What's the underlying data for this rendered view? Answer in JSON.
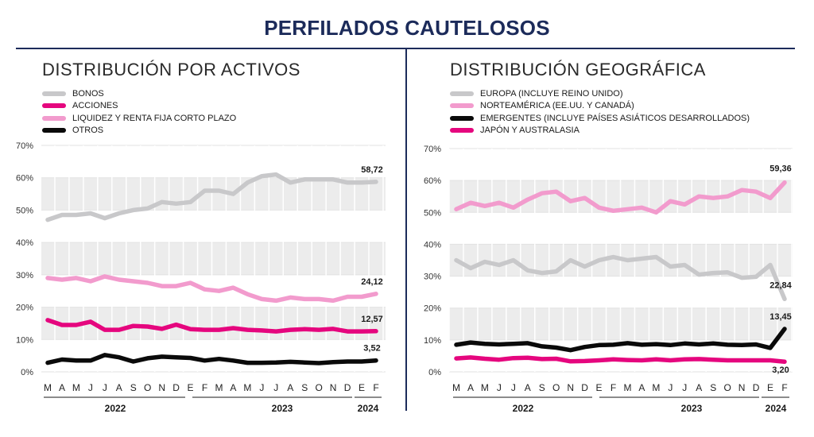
{
  "header": {
    "title": "PERFILADOS CAUTELOSOS"
  },
  "colors": {
    "navy": "#1c2b5a",
    "grey": "#c8c8ca",
    "magenta": "#e5067e",
    "pink": "#f29bcd",
    "black": "#0a0a0a",
    "band": "#ececec"
  },
  "chart_data": [
    {
      "type": "line",
      "title": "DISTRIBUCIÓN POR ACTIVOS",
      "x": [
        "M",
        "A",
        "M",
        "J",
        "J",
        "A",
        "S",
        "O",
        "N",
        "D",
        "E",
        "F",
        "M",
        "A",
        "M",
        "J",
        "J",
        "A",
        "S",
        "O",
        "N",
        "D",
        "E",
        "F"
      ],
      "year_labels": [
        "2022",
        "2023",
        "2024"
      ],
      "ylim": [
        0,
        70
      ],
      "yticks": [
        "0%",
        "10%",
        "20%",
        "30%",
        "40%",
        "50%",
        "60%",
        "70%"
      ],
      "grid": true,
      "legend_placement": "top-left",
      "series": [
        {
          "name": "BONOS",
          "color": "#c8c8ca",
          "values": [
            47,
            48.5,
            48.5,
            49,
            47.5,
            49,
            50,
            50.5,
            52.5,
            52,
            52.5,
            56,
            56,
            55,
            58.5,
            60.5,
            61,
            58.5,
            59.5,
            59.5,
            59.5,
            58.5,
            58.5,
            58.72
          ],
          "end_label": "58,72"
        },
        {
          "name": "ACCIONES",
          "color": "#e5067e",
          "values": [
            16,
            14.5,
            14.5,
            15.5,
            13,
            13,
            14.2,
            14,
            13.3,
            14.6,
            13.2,
            13,
            13,
            13.5,
            13,
            12.8,
            12.5,
            13,
            13.2,
            13,
            13.3,
            12.5,
            12.5,
            12.57
          ],
          "end_label": "12,57"
        },
        {
          "name": "LIQUIDEZ Y RENTA FIJA CORTO PLAZO",
          "color": "#f29bcd",
          "values": [
            29,
            28.5,
            29,
            28,
            29.5,
            28.5,
            28,
            27.5,
            26.5,
            26.5,
            27.5,
            25.5,
            25,
            26,
            24,
            22.5,
            22,
            23,
            22.5,
            22.5,
            22,
            23.2,
            23.2,
            24.12
          ],
          "end_label": "24,12"
        },
        {
          "name": "OTROS",
          "color": "#0a0a0a",
          "values": [
            2.8,
            3.8,
            3.5,
            3.5,
            5.2,
            4.5,
            3.2,
            4.2,
            4.7,
            4.5,
            4.3,
            3.5,
            4,
            3.5,
            2.8,
            2.8,
            2.9,
            3.1,
            2.9,
            2.7,
            3,
            3.2,
            3.2,
            3.52
          ],
          "end_label": "3,52"
        }
      ]
    },
    {
      "type": "line",
      "title": "DISTRIBUCIÓN GEOGRÁFICA",
      "x": [
        "M",
        "A",
        "M",
        "J",
        "J",
        "A",
        "S",
        "O",
        "N",
        "D",
        "E",
        "F",
        "M",
        "A",
        "M",
        "J",
        "J",
        "A",
        "S",
        "O",
        "N",
        "D",
        "E",
        "F"
      ],
      "year_labels": [
        "2022",
        "2023",
        "2024"
      ],
      "ylim": [
        0,
        70
      ],
      "yticks": [
        "0%",
        "10%",
        "20%",
        "30%",
        "40%",
        "50%",
        "60%",
        "70%"
      ],
      "grid": true,
      "legend_placement": "top-left",
      "series": [
        {
          "name": "EUROPA (INCLUYE REINO UNIDO)",
          "color": "#c8c8ca",
          "values": [
            35,
            32.5,
            34.5,
            33.5,
            35,
            31.8,
            31,
            31.5,
            35,
            33,
            35,
            36,
            35,
            35.5,
            36,
            33,
            33.5,
            30.5,
            31,
            31.2,
            29.5,
            29.8,
            33.5,
            22.84
          ],
          "end_label": "22,84"
        },
        {
          "name": "NORTEAMÉRICA (EE.UU. Y CANADÁ)",
          "color": "#f29bcd",
          "values": [
            51,
            53,
            52,
            53,
            51.5,
            54,
            56,
            56.5,
            53.5,
            54.5,
            51.5,
            50.5,
            51,
            51.5,
            50,
            53.5,
            52.5,
            55,
            54.5,
            55,
            57,
            56.5,
            54.5,
            59.36
          ],
          "end_label": "59,36"
        },
        {
          "name": "EMERGENTES (INCLUYE PAÍSES  ASIÁTICOS DESARROLLADOS)",
          "color": "#0a0a0a",
          "values": [
            8.5,
            9.2,
            8.8,
            8.6,
            8.8,
            9,
            8,
            7.6,
            6.8,
            7.8,
            8.4,
            8.5,
            9,
            8.5,
            8.7,
            8.4,
            8.9,
            8.6,
            8.9,
            8.5,
            8.4,
            8.6,
            7.5,
            13.45
          ],
          "end_label": "13,45"
        },
        {
          "name": "JAPÓN Y AUSTRALASIA",
          "color": "#e5067e",
          "values": [
            4.2,
            4.5,
            4.1,
            3.8,
            4.3,
            4.4,
            4,
            4.1,
            3.3,
            3.4,
            3.6,
            3.9,
            3.7,
            3.6,
            3.9,
            3.6,
            3.9,
            4,
            3.8,
            3.6,
            3.6,
            3.6,
            3.6,
            3.2
          ],
          "end_label": "3,20"
        }
      ]
    }
  ]
}
